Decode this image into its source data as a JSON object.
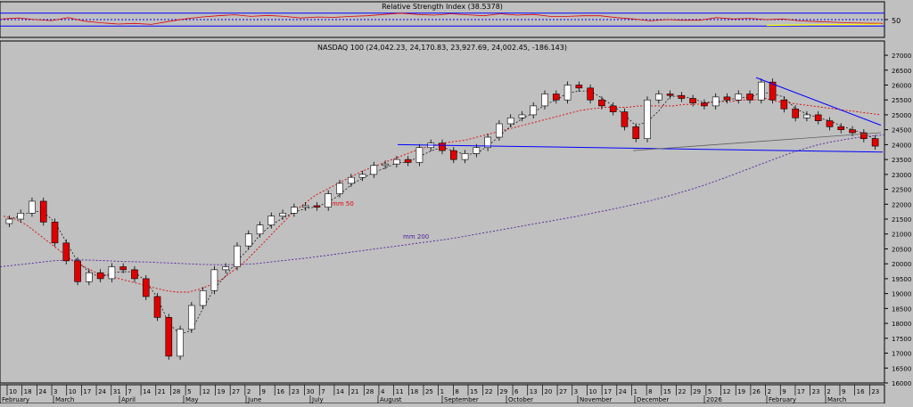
{
  "chart_data": [
    {
      "type": "line",
      "title": "Relative Strength Index (38.5378)",
      "ylim": [
        0,
        100
      ],
      "reference_levels": [
        30,
        50,
        70
      ],
      "y_ticks": [
        "50"
      ],
      "colors": {
        "line": "#e00000",
        "ref": "#0000ff",
        "trendline": "#ffff00"
      },
      "series": [
        {
          "values": [
            52,
            55,
            50,
            47,
            56,
            45,
            40,
            36,
            38,
            35,
            44,
            52,
            58,
            62,
            65,
            60,
            63,
            60,
            55,
            58,
            57,
            60,
            62,
            66,
            70,
            66,
            64,
            68,
            65,
            62,
            68,
            64,
            66,
            60,
            60,
            62,
            62,
            56,
            52,
            46,
            50,
            48,
            48,
            56,
            52,
            54,
            50,
            52,
            46,
            44,
            42,
            40,
            39,
            38
          ]
        }
      ]
    },
    {
      "type": "candlestick",
      "title": "NASDAQ 100 (24,042.23, 24,170.83, 23,927.69, 24,002.45, -186.143)",
      "ylim": [
        16000,
        27300
      ],
      "y_ticks": [
        "16000",
        "16500",
        "17000",
        "17500",
        "18000",
        "18500",
        "19000",
        "19500",
        "20000",
        "20500",
        "21000",
        "21500",
        "22000",
        "22500",
        "23000",
        "23500",
        "24000",
        "24500",
        "25000",
        "25500",
        "26000",
        "26500",
        "27000"
      ],
      "x_tick_labels": [
        "10",
        "18",
        "24",
        "3",
        "10",
        "17",
        "24",
        "31",
        "7",
        "14",
        "21",
        "28",
        "5",
        "12",
        "19",
        "27",
        "2",
        "9",
        "16",
        "23",
        "30",
        "7",
        "14",
        "21",
        "28",
        "4",
        "11",
        "18",
        "25",
        "1",
        "8",
        "15",
        "22",
        "29",
        "6",
        "13",
        "20",
        "27",
        "3",
        "10",
        "17",
        "24",
        "1",
        "8",
        "15",
        "22",
        "29",
        "5",
        "12",
        "19",
        "26",
        "2",
        "9",
        "17",
        "23",
        "2",
        "9",
        "16",
        "23"
      ],
      "month_labels": [
        "February",
        "March",
        "April",
        "May",
        "June",
        "July",
        "August",
        "September",
        "October",
        "November",
        "December",
        "2026",
        "February",
        "March"
      ],
      "series": [
        {
          "name": "close",
          "values": [
            21500,
            21700,
            22100,
            21400,
            20700,
            20100,
            19400,
            19700,
            19500,
            19900,
            19800,
            19500,
            18900,
            18200,
            16900,
            17800,
            18600,
            19100,
            19800,
            19900,
            20600,
            21000,
            21300,
            21600,
            21700,
            21900,
            21950,
            21900,
            22350,
            22700,
            22900,
            23000,
            23300,
            23350,
            23500,
            23400,
            23900,
            24050,
            23800,
            23500,
            23700,
            23900,
            24250,
            24700,
            24900,
            25000,
            25300,
            25700,
            25500,
            26000,
            25900,
            25500,
            25300,
            25100,
            24600,
            24200,
            25500,
            25700,
            25650,
            25550,
            25400,
            25300,
            25600,
            25500,
            25700,
            25500,
            26100,
            25500,
            25200,
            24900,
            25000,
            24800,
            24600,
            24500,
            24400,
            24200,
            23950
          ]
        },
        {
          "name": "mm 50",
          "values": [
            21600,
            21500,
            21300,
            21000,
            20700,
            20400,
            20100,
            19900,
            19700,
            19600,
            19500,
            19400,
            19300,
            19200,
            19100,
            19050,
            19050,
            19150,
            19300,
            19500,
            19800,
            20100,
            20500,
            20900,
            21300,
            21700,
            22000,
            22300,
            22500,
            22700,
            22900,
            23100,
            23250,
            23400,
            23550,
            23700,
            23850,
            23950,
            24050,
            24100,
            24150,
            24250,
            24350,
            24450,
            24550,
            24650,
            24750,
            24850,
            24950,
            25050,
            25150,
            25200,
            25250,
            25250,
            25250,
            25300,
            25300,
            25300,
            25300,
            25350,
            25350,
            25400,
            25450,
            25450,
            25500,
            25500,
            25550,
            25450,
            25400,
            25350,
            25300,
            25250,
            25200,
            25150,
            25100,
            25050,
            25000
          ]
        },
        {
          "name": "mm 200",
          "values": [
            19900,
            19950,
            20000,
            20050,
            20100,
            20120,
            20130,
            20120,
            20100,
            20080,
            20070,
            20060,
            20040,
            20020,
            20000,
            19980,
            19970,
            19970,
            19980,
            20000,
            20050,
            20100,
            20150,
            20200,
            20260,
            20320,
            20380,
            20440,
            20500,
            20560,
            20620,
            20680,
            20740,
            20800,
            20870,
            20950,
            21030,
            21110,
            21190,
            21270,
            21350,
            21430,
            21510,
            21590,
            21680,
            21770,
            21860,
            21960,
            22060,
            22170,
            22290,
            22420,
            22560,
            22710,
            22870,
            23040,
            23210,
            23380,
            23550,
            23720,
            23860,
            23990,
            24090,
            24170,
            24240,
            24290,
            24330
          ]
        }
      ],
      "annotations": [
        "mm 50",
        "mm 200"
      ],
      "colors": {
        "up": "#ffffff",
        "down": "#e00000",
        "mm50": "#e00000",
        "mm200": "#5020a0",
        "trendline": "#0000ff",
        "axis": "#000000"
      }
    }
  ]
}
